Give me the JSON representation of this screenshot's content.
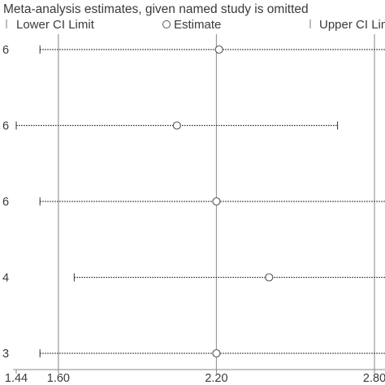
{
  "chart_data": {
    "type": "scatter",
    "title": "Meta-analysis estimates, given named study is omitted",
    "legend": {
      "placement": "top",
      "entries": [
        {
          "label": "Lower CI Limit",
          "symbol": "tick"
        },
        {
          "label": "Estimate",
          "symbol": "circle"
        },
        {
          "label": "Upper CI Limit",
          "symbol": "tick"
        }
      ]
    },
    "x_ticks": [
      {
        "value": 1.44,
        "label": "1.44"
      },
      {
        "value": 1.6,
        "label": "1.60"
      },
      {
        "value": 2.2,
        "label": "2.20"
      },
      {
        "value": 2.8,
        "label": "2.80"
      }
    ],
    "reference_lines": [
      1.6,
      2.2,
      2.8
    ],
    "xlim": [
      1.44,
      2.84
    ],
    "studies": [
      {
        "label": "6",
        "lower": 1.53,
        "estimate": 2.21,
        "upper": 2.88
      },
      {
        "label": "6",
        "lower": 1.44,
        "estimate": 2.05,
        "upper": 2.66
      },
      {
        "label": "6",
        "lower": 1.53,
        "estimate": 2.2,
        "upper": 2.88
      },
      {
        "label": "4",
        "lower": 1.66,
        "estimate": 2.4,
        "upper": 2.88
      },
      {
        "label": "3",
        "lower": 1.53,
        "estimate": 2.2,
        "upper": 2.88
      }
    ],
    "colors": {
      "line": "#9a9a9a",
      "marker": "#555555",
      "ci": "#333333",
      "text": "#3a3a3a"
    }
  }
}
